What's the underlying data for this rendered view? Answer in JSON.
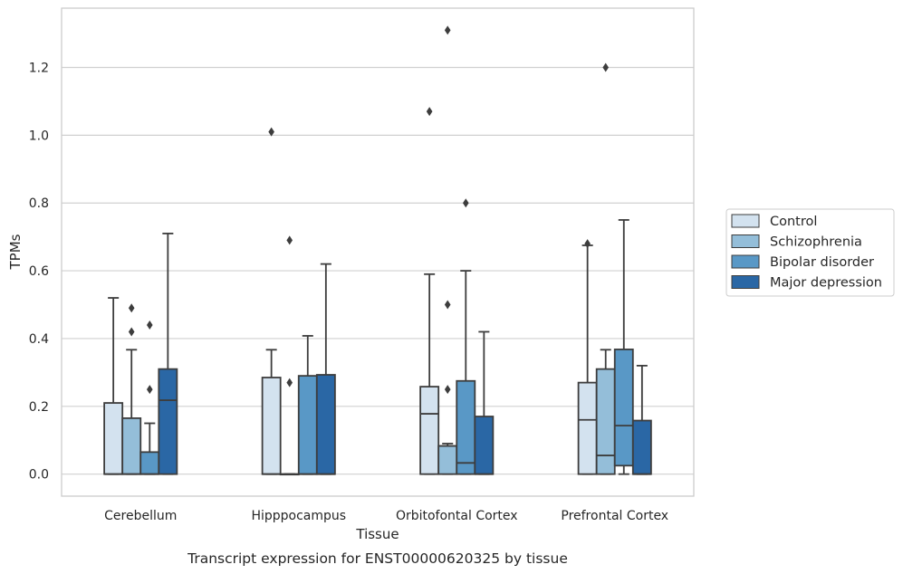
{
  "chart_data": {
    "type": "box",
    "caption": "Transcript expression for ENST00000620325 by tissue",
    "xlabel": "Tissue",
    "ylabel": "TPMs",
    "ylim": [
      -0.065,
      1.375
    ],
    "yticks": [
      0.0,
      0.2,
      0.4,
      0.6,
      0.8,
      1.0,
      1.2
    ],
    "ytick_labels": [
      "0.0",
      "0.2",
      "0.4",
      "0.6",
      "0.8",
      "1.0",
      "1.2"
    ],
    "grid": "horizontal",
    "legend_position": "right",
    "categories": [
      "Cerebellum",
      "Hipppocampus",
      "Orbitofontal Cortex",
      "Prefrontal Cortex"
    ],
    "series": [
      {
        "name": "Control",
        "color": "#d3e2ef",
        "boxes": [
          {
            "q1": 0.0,
            "median": 0.0,
            "q3": 0.21,
            "whisker_low": 0.0,
            "whisker_high": 0.52,
            "outliers": []
          },
          {
            "q1": 0.0,
            "median": 0.0,
            "q3": 0.285,
            "whisker_low": 0.0,
            "whisker_high": 0.367,
            "outliers": [
              1.01
            ]
          },
          {
            "q1": 0.0,
            "median": 0.178,
            "q3": 0.258,
            "whisker_low": 0.0,
            "whisker_high": 0.59,
            "outliers": [
              1.07
            ]
          },
          {
            "q1": 0.0,
            "median": 0.16,
            "q3": 0.27,
            "whisker_low": 0.0,
            "whisker_high": 0.675,
            "outliers": [
              0.68
            ]
          }
        ]
      },
      {
        "name": "Schizophrenia",
        "color": "#94bed9",
        "boxes": [
          {
            "q1": 0.0,
            "median": 0.0,
            "q3": 0.165,
            "whisker_low": 0.0,
            "whisker_high": 0.367,
            "outliers": [
              0.42,
              0.49
            ]
          },
          {
            "q1": 0.0,
            "median": 0.0,
            "q3": 0.0,
            "whisker_low": 0.0,
            "whisker_high": 0.0,
            "outliers": [
              0.27,
              0.69
            ]
          },
          {
            "q1": 0.0,
            "median": 0.083,
            "q3": 0.083,
            "whisker_low": 0.0,
            "whisker_high": 0.09,
            "outliers": [
              0.25,
              0.5,
              1.31
            ]
          },
          {
            "q1": 0.0,
            "median": 0.055,
            "q3": 0.31,
            "whisker_low": 0.0,
            "whisker_high": 0.367,
            "outliers": [
              1.2
            ]
          }
        ]
      },
      {
        "name": "Bipolar disorder",
        "color": "#5998c6",
        "boxes": [
          {
            "q1": 0.0,
            "median": 0.0,
            "q3": 0.065,
            "whisker_low": 0.0,
            "whisker_high": 0.15,
            "outliers": [
              0.25,
              0.44
            ]
          },
          {
            "q1": 0.0,
            "median": 0.0,
            "q3": 0.29,
            "whisker_low": 0.0,
            "whisker_high": 0.408,
            "outliers": []
          },
          {
            "q1": 0.0,
            "median": 0.033,
            "q3": 0.275,
            "whisker_low": 0.0,
            "whisker_high": 0.6,
            "outliers": [
              0.8
            ]
          },
          {
            "q1": 0.025,
            "median": 0.143,
            "q3": 0.368,
            "whisker_low": 0.0,
            "whisker_high": 0.75,
            "outliers": []
          }
        ]
      },
      {
        "name": "Major depression",
        "color": "#2a67a5",
        "boxes": [
          {
            "q1": 0.0,
            "median": 0.218,
            "q3": 0.31,
            "whisker_low": 0.0,
            "whisker_high": 0.71,
            "outliers": []
          },
          {
            "q1": 0.0,
            "median": 0.0,
            "q3": 0.293,
            "whisker_low": 0.0,
            "whisker_high": 0.62,
            "outliers": []
          },
          {
            "q1": 0.0,
            "median": 0.0,
            "q3": 0.17,
            "whisker_low": 0.0,
            "whisker_high": 0.42,
            "outliers": []
          },
          {
            "q1": 0.0,
            "median": 0.0,
            "q3": 0.158,
            "whisker_low": 0.0,
            "whisker_high": 0.32,
            "outliers": []
          }
        ]
      }
    ]
  }
}
